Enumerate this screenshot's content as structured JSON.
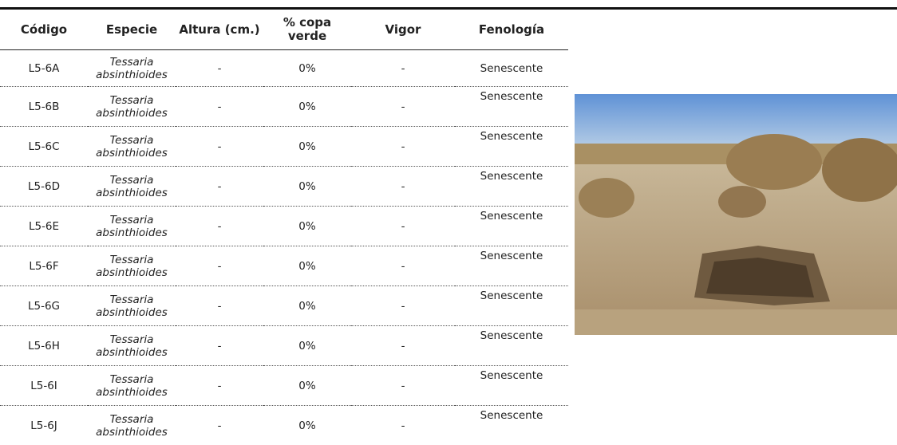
{
  "table": {
    "header": [
      "Código",
      "Especie",
      "Altura (cm.)",
      "% copa verde",
      "Vigor",
      "Fenología"
    ],
    "rows": [
      [
        "L5-6A",
        "Tessaria absinthioides",
        "-",
        "0%",
        "-",
        "Senescente"
      ],
      [
        "L5-6B",
        "Tessaria absinthioides",
        "-",
        "0%",
        "-",
        "Senescente"
      ],
      [
        "L5-6C",
        "Tessaria absinthioides",
        "-",
        "0%",
        "-",
        "Senescente"
      ],
      [
        "L5-6D",
        "Tessaria absinthioides",
        "-",
        "0%",
        "-",
        "Senescente"
      ],
      [
        "L5-6E",
        "Tessaria absinthioides",
        "-",
        "0%",
        "-",
        "Senescente"
      ],
      [
        "L5-6F",
        "Tessaria absinthioides",
        "-",
        "0%",
        "-",
        "Senescente"
      ],
      [
        "L5-6G",
        "Tessaria absinthioides",
        "-",
        "0%",
        "-",
        "Senescente"
      ],
      [
        "L5-6H",
        "Tessaria absinthioides",
        "-",
        "0%",
        "-",
        "Senescente"
      ],
      [
        "L5-6I",
        "Tessaria absinthioides",
        "-",
        "0%",
        "-",
        "Senescente"
      ],
      [
        "L5-6J",
        "Tessaria absinthioides",
        "-",
        "0%",
        "-",
        "Senescente"
      ]
    ]
  }
}
